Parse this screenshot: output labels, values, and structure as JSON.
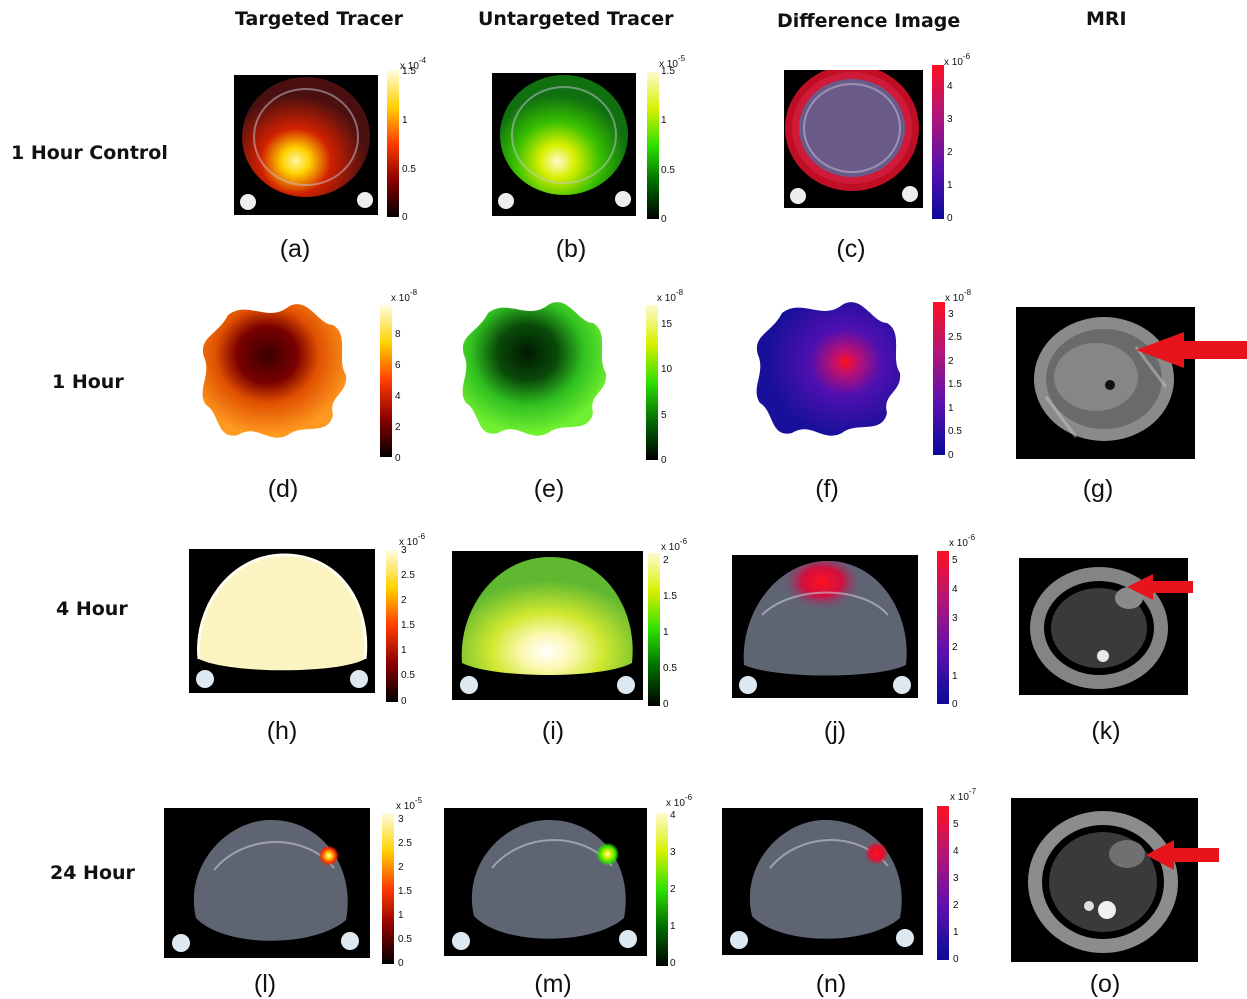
{
  "columns": [
    "Targeted Tracer",
    "Untargeted Tracer",
    "Difference Image",
    "MRI"
  ],
  "rows": [
    "1 Hour Control",
    "1 Hour",
    "4 Hour",
    "24 Hour"
  ],
  "captions": [
    "(a)",
    "(b)",
    "(c)",
    "(d)",
    "(e)",
    "(f)",
    "(g)",
    "(h)",
    "(i)",
    "(j)",
    "(k)",
    "(l)",
    "(m)",
    "(n)",
    "(o)"
  ],
  "colorbars": {
    "a": {
      "mult": "x 10",
      "exp": "-4",
      "ticks": [
        "1.5",
        "1",
        "0.5",
        "0"
      ]
    },
    "b": {
      "mult": "x 10",
      "exp": "-5",
      "ticks": [
        "1.5",
        "1",
        "0.5",
        "0"
      ]
    },
    "c": {
      "mult": "x 10",
      "exp": "-6",
      "ticks": [
        "4",
        "3",
        "2",
        "1",
        "0"
      ]
    },
    "d": {
      "mult": "x 10",
      "exp": "-8",
      "ticks": [
        "8",
        "6",
        "4",
        "2",
        "0"
      ]
    },
    "e": {
      "mult": "x 10",
      "exp": "-8",
      "ticks": [
        "15",
        "10",
        "5",
        "0"
      ]
    },
    "f": {
      "mult": "x 10",
      "exp": "-8",
      "ticks": [
        "3",
        "2.5",
        "2",
        "1.5",
        "1",
        "0.5",
        "0"
      ]
    },
    "h": {
      "mult": "x 10",
      "exp": "-6",
      "ticks": [
        "3",
        "2.5",
        "2",
        "1.5",
        "1",
        "0.5",
        "0"
      ]
    },
    "i": {
      "mult": "x 10",
      "exp": "-6",
      "ticks": [
        "2",
        "1.5",
        "1",
        "0.5",
        "0"
      ]
    },
    "j": {
      "mult": "x 10",
      "exp": "-6",
      "ticks": [
        "5",
        "4",
        "3",
        "2",
        "1",
        "0"
      ]
    },
    "l": {
      "mult": "x 10",
      "exp": "-5",
      "ticks": [
        "3",
        "2.5",
        "2",
        "1.5",
        "1",
        "0.5",
        "0"
      ]
    },
    "m": {
      "mult": "x 10",
      "exp": "-6",
      "ticks": [
        "4",
        "3",
        "2",
        "1",
        "0"
      ]
    },
    "n": {
      "mult": "x 10",
      "exp": "-7",
      "ticks": [
        "5",
        "4",
        "3",
        "2",
        "1",
        "0"
      ]
    }
  },
  "colors": {
    "arrow": "#e8141c",
    "targeted_cmap": [
      "#000000",
      "#8a0000",
      "#ff3b00",
      "#ffd200",
      "#fffde0"
    ],
    "untargeted_cmap": [
      "#000000",
      "#006a00",
      "#2ee000",
      "#d8f000",
      "#fffbd0"
    ],
    "difference_cmap": [
      "#0a0a9a",
      "#5a10b0",
      "#b0157a",
      "#ff1020"
    ]
  }
}
